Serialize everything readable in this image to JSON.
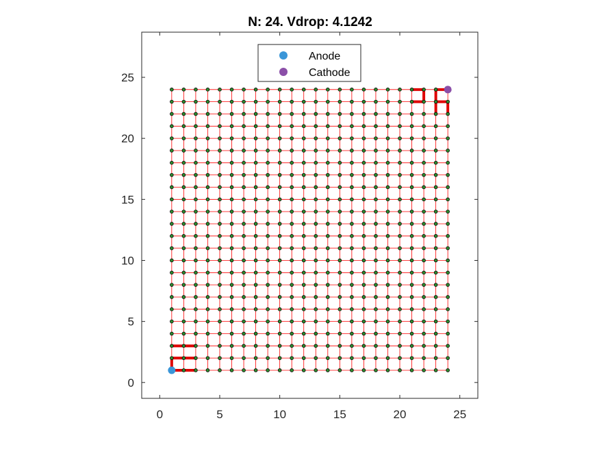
{
  "chart_data": {
    "type": "scatter",
    "title": "N: 24. Vdrop: 4.1242",
    "xlabel": "",
    "ylabel": "",
    "xlim": [
      -1.5,
      26.5
    ],
    "ylim": [
      -1.3,
      28.7
    ],
    "xticks": [
      0,
      5,
      10,
      15,
      20,
      25
    ],
    "yticks": [
      0,
      5,
      10,
      15,
      20,
      25
    ],
    "grid": false,
    "legend_position": "top-center",
    "grid_size": 24,
    "series": [
      {
        "name": "Anode",
        "color": "#3a96d8",
        "x": [
          1
        ],
        "y": [
          1
        ]
      },
      {
        "name": "Cathode",
        "color": "#8b4fa8",
        "x": [
          24
        ],
        "y": [
          24
        ]
      }
    ],
    "node_color": "#2e8b2e",
    "edge_color": "#ff0000",
    "current_path_color": "#e00000",
    "current_path": [
      [
        1,
        1
      ],
      [
        1,
        2
      ],
      [
        1,
        1
      ],
      [
        2,
        1
      ],
      [
        3,
        1
      ],
      [
        2,
        1
      ],
      [
        2,
        2
      ],
      [
        1,
        2
      ],
      [
        1,
        3
      ],
      [
        2,
        3
      ],
      [
        2,
        2
      ],
      [
        3,
        2
      ],
      [
        3,
        3
      ],
      [
        2,
        3
      ],
      [
        21,
        23
      ],
      [
        22,
        23
      ],
      [
        23,
        23
      ],
      [
        24,
        23
      ],
      [
        24,
        24
      ],
      [
        23,
        24
      ],
      [
        22,
        24
      ],
      [
        21,
        24
      ],
      [
        22,
        24
      ],
      [
        22,
        23
      ],
      [
        23,
        22
      ],
      [
        23,
        24
      ],
      [
        24,
        22
      ],
      [
        24,
        23
      ]
    ]
  }
}
